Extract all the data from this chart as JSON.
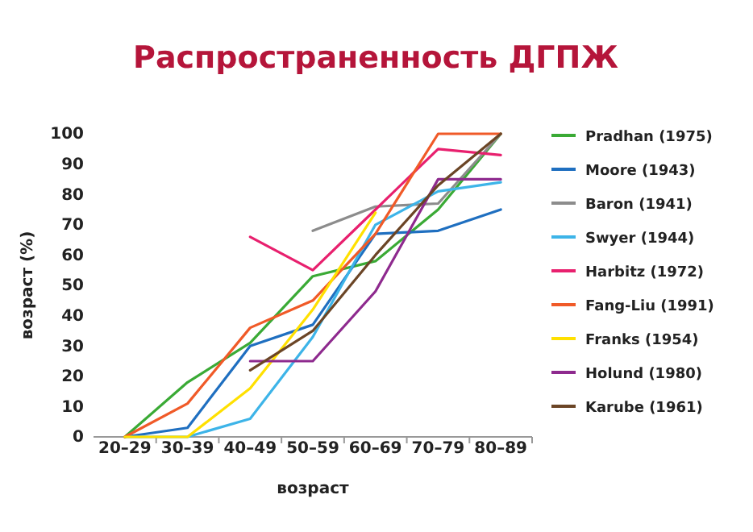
{
  "chart_data": {
    "type": "line",
    "title": "Распространенность ДГПЖ",
    "xlabel": "возраст",
    "ylabel": "возраст (%)",
    "categories": [
      "20–29",
      "30–39",
      "40–49",
      "50–59",
      "60–69",
      "70–79",
      "80–89"
    ],
    "ylim": [
      0,
      100
    ],
    "yticks": [
      0,
      10,
      20,
      30,
      40,
      50,
      60,
      70,
      80,
      90,
      100
    ],
    "grid": false,
    "legend": "right",
    "marker": "none",
    "line_style": "solid",
    "series": [
      {
        "name": "Pradhan (1975)",
        "color": "#3aaa35",
        "values": [
          0,
          18,
          31,
          53,
          58,
          75,
          100
        ]
      },
      {
        "name": "Moore (1943)",
        "color": "#1f6fc0",
        "values": [
          0,
          3,
          30,
          37,
          67,
          68,
          75
        ]
      },
      {
        "name": "Baron (1941)",
        "color": "#8c8c8c",
        "values": [
          null,
          null,
          null,
          68,
          76,
          77,
          100
        ]
      },
      {
        "name": "Swyer (1944)",
        "color": "#3db4e8",
        "values": [
          0,
          0,
          6,
          33,
          70,
          81,
          84
        ]
      },
      {
        "name": "Harbitz (1972)",
        "color": "#e8206e",
        "values": [
          null,
          null,
          66,
          55,
          75,
          95,
          93
        ]
      },
      {
        "name": "Fang-Liu (1991)",
        "color": "#f05a28",
        "values": [
          0,
          11,
          36,
          45,
          67,
          100,
          100
        ]
      },
      {
        "name": "Franks (1954)",
        "color": "#ffe000",
        "values": [
          0,
          0,
          16,
          42,
          74,
          null,
          null
        ]
      },
      {
        "name": "Holund (1980)",
        "color": "#8e2a8e",
        "values": [
          null,
          null,
          25,
          25,
          48,
          85,
          85
        ]
      },
      {
        "name": "Karube (1961)",
        "color": "#6b4526",
        "values": [
          null,
          null,
          22,
          35,
          60,
          83,
          100
        ]
      }
    ]
  }
}
